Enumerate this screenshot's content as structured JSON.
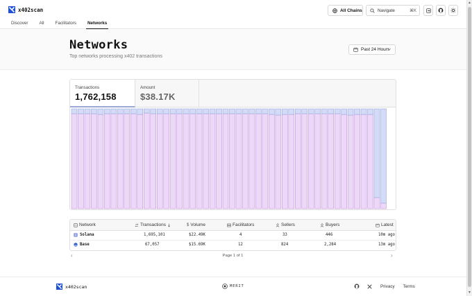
{
  "app": {
    "name": "x402scan",
    "chains_label": "All Chains",
    "search_placeholder": "Navigate",
    "search_shortcut": "⌘K"
  },
  "nav": {
    "tabs": [
      {
        "label": "Discover",
        "active": false
      },
      {
        "label": "All",
        "active": false
      },
      {
        "label": "Facilitators",
        "active": false
      },
      {
        "label": "Networks",
        "active": true
      }
    ]
  },
  "hero": {
    "title": "Networks",
    "subtitle": "Top networks processing x402 transactions",
    "range_label": "Past 24 Hours"
  },
  "stats": {
    "transactions_label": "Transactions",
    "transactions_value": "1,762,158",
    "amount_label": "Amount",
    "amount_value": "$38.17K"
  },
  "chart_data": {
    "type": "bar",
    "stacked": true,
    "normalized_share": true,
    "categories_count": 48,
    "ylim": [
      0,
      1
    ],
    "series": [
      {
        "name": "Solana",
        "color": "#ecd9f7",
        "stroke": "#c792e0",
        "values": [
          0.951,
          0.951,
          0.951,
          0.951,
          0.944,
          0.951,
          0.951,
          0.951,
          0.951,
          0.951,
          0.944,
          0.958,
          0.951,
          0.951,
          0.951,
          0.951,
          0.951,
          0.951,
          0.951,
          0.951,
          0.951,
          0.951,
          0.951,
          0.951,
          0.951,
          0.951,
          0.951,
          0.951,
          0.951,
          0.951,
          0.944,
          0.937,
          0.944,
          0.944,
          0.951,
          0.951,
          0.951,
          0.951,
          0.951,
          0.951,
          0.951,
          0.944,
          0.937,
          0.944,
          0.944,
          0.944,
          0.111,
          0.056
        ]
      },
      {
        "name": "Base",
        "color": "#d3dbf6",
        "stroke": "#98a6e0",
        "values": [
          0.049,
          0.049,
          0.049,
          0.049,
          0.056,
          0.049,
          0.049,
          0.049,
          0.049,
          0.049,
          0.056,
          0.042,
          0.049,
          0.049,
          0.049,
          0.049,
          0.049,
          0.049,
          0.049,
          0.049,
          0.049,
          0.049,
          0.049,
          0.049,
          0.049,
          0.049,
          0.049,
          0.049,
          0.049,
          0.049,
          0.056,
          0.063,
          0.056,
          0.056,
          0.049,
          0.049,
          0.049,
          0.049,
          0.049,
          0.049,
          0.049,
          0.056,
          0.063,
          0.056,
          0.056,
          0.056,
          0.889,
          0.944
        ]
      }
    ]
  },
  "table": {
    "headers": {
      "network": "Network",
      "transactions": "Transactions",
      "volume": "Volume",
      "facilitators": "Facilitators",
      "sellers": "Sellers",
      "buyers": "Buyers",
      "latest": "Latest"
    },
    "rows": [
      {
        "network": "Solana",
        "transactions": "1,695,101",
        "volume": "$22.49K",
        "facilitators": "4",
        "sellers": "33",
        "buyers": "446",
        "latest": "10m ago",
        "icon_color": "#7c8bd9"
      },
      {
        "network": "Base",
        "transactions": "67,057",
        "volume": "$15.69K",
        "facilitators": "12",
        "sellers": "824",
        "buyers": "2,284",
        "latest": "13m ago",
        "icon_color": "#2f5fd0"
      }
    ],
    "page_info": "Page 1 of 1"
  },
  "footer": {
    "brand": "x402scan",
    "merit": "MERIT",
    "privacy": "Privacy",
    "terms": "Terms"
  },
  "colors": {
    "accent_blue": "#1e52d6",
    "solana_fill": "#ecd9f7",
    "base_fill": "#d3dbf6"
  }
}
